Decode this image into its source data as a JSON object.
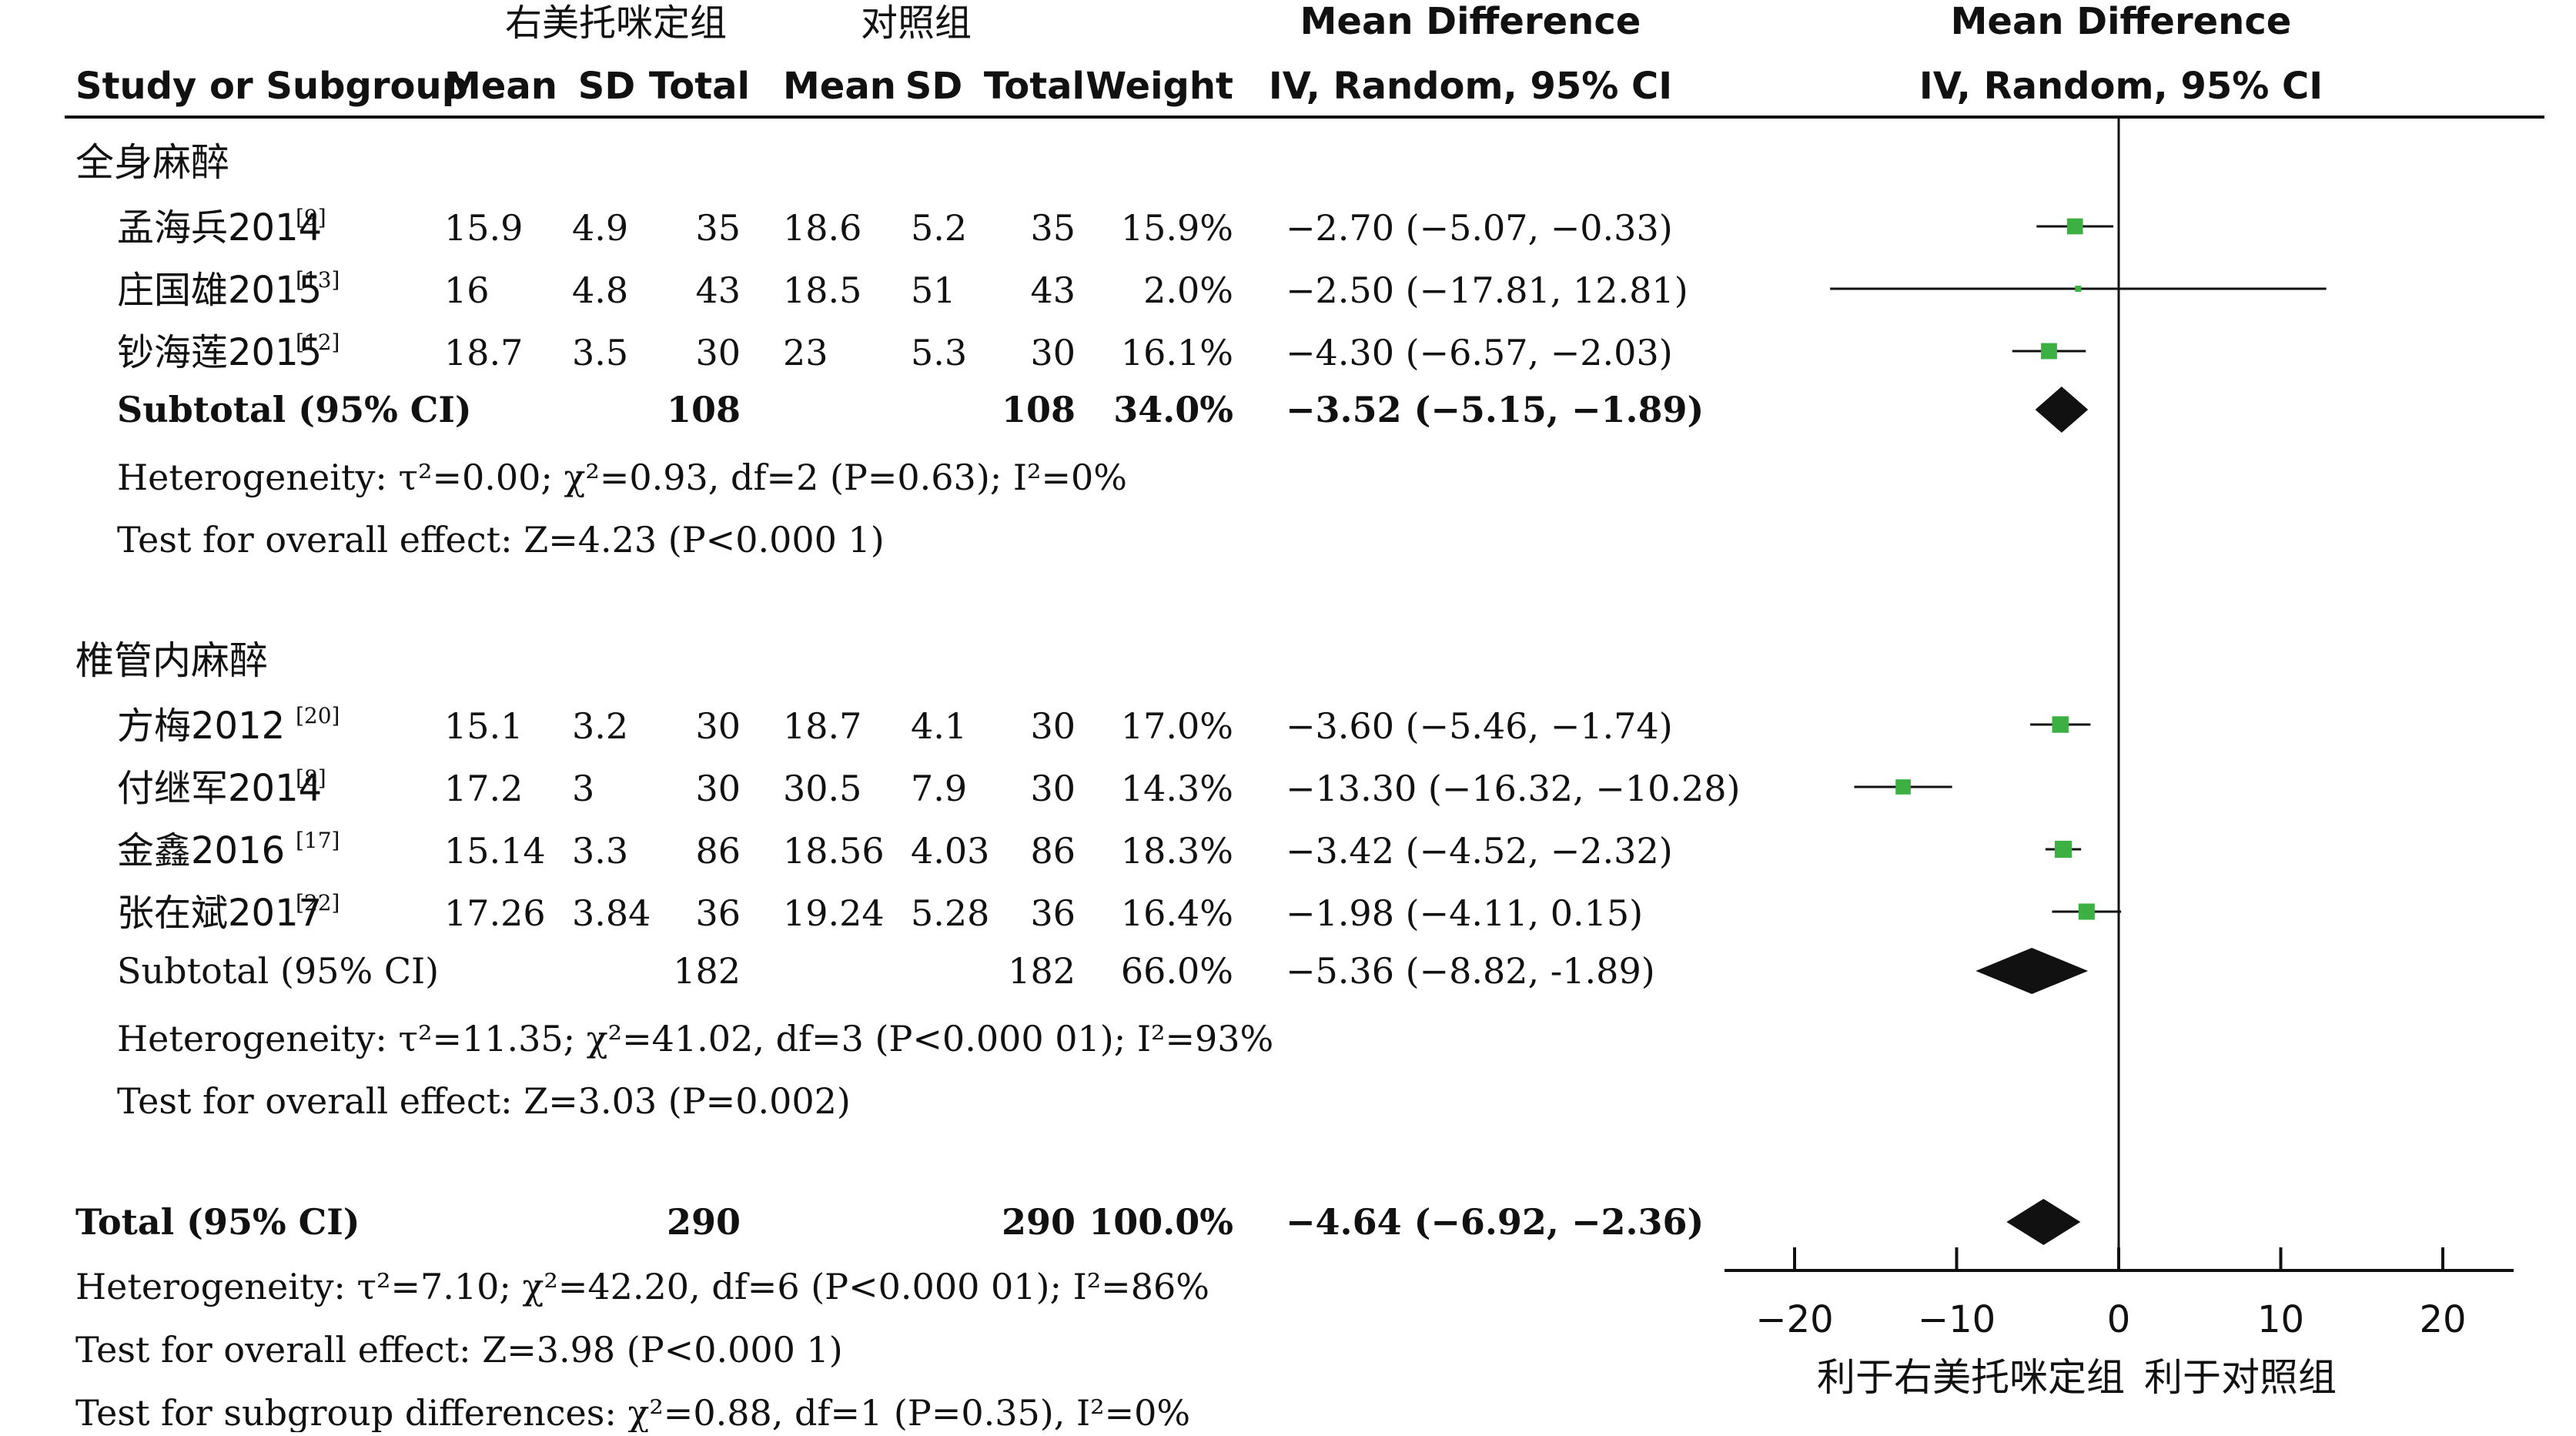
{
  "chart_data": {
    "type": "forest",
    "group_labels": {
      "treatment": "右美托咪定组",
      "control": "对照组"
    },
    "headers": {
      "study": "Study or Subgroup",
      "mean_t": "Mean",
      "sd_t": "SD",
      "total_t": "Total",
      "mean_c": "Mean",
      "sd_c": "SD",
      "total_c": "Total",
      "weight": "Weight",
      "md_line1": "Mean Difference",
      "md_line2": "IV, Random, 95% CI",
      "plot_line1": "Mean Difference",
      "plot_line2": "IV, Random, 95% CI"
    },
    "subgroups": [
      {
        "name": "全身麻醉",
        "studies": [
          {
            "study": "孟海兵2014",
            "ref": "[9]",
            "mean_t": "15.9",
            "sd_t": "4.9",
            "total_t": "35",
            "mean_c": "18.6",
            "sd_c": "5.2",
            "total_c": "35",
            "weight": "15.9%",
            "ci_text": "−2.70 (−5.07, −0.33)",
            "md": -2.7,
            "lo": -5.07,
            "hi": -0.33
          },
          {
            "study": "庄国雄2015",
            "ref": "[13]",
            "mean_t": "16",
            "sd_t": "4.8",
            "total_t": "43",
            "mean_c": "18.5",
            "sd_c": "51",
            "total_c": "43",
            "weight": "2.0%",
            "ci_text": "−2.50 (−17.81, 12.81)",
            "md": -2.5,
            "lo": -17.81,
            "hi": 12.81
          },
          {
            "study": "钞海莲2015",
            "ref": "[12]",
            "mean_t": "18.7",
            "sd_t": "3.5",
            "total_t": "30",
            "mean_c": "23",
            "sd_c": "5.3",
            "total_c": "30",
            "weight": "16.1%",
            "ci_text": "−4.30 (−6.57, −2.03)",
            "md": -4.3,
            "lo": -6.57,
            "hi": -2.03
          }
        ],
        "subtotal": {
          "label": "Subtotal (95% CI)",
          "total_t": "108",
          "total_c": "108",
          "weight": "34.0%",
          "ci_text": "−3.52 (−5.15, −1.89)",
          "md": -3.52,
          "lo": -5.15,
          "hi": -1.89
        },
        "heterogeneity": "Heterogeneity: τ²=0.00; χ²=0.93, df=2 (P=0.63); I²=0%",
        "overall": "Test for overall effect: Z=4.23 (P<0.000 1)"
      },
      {
        "name": "椎管内麻醉",
        "studies": [
          {
            "study": "方梅2012",
            "ref": "[20]",
            "mean_t": "15.1",
            "sd_t": "3.2",
            "total_t": "30",
            "mean_c": "18.7",
            "sd_c": "4.1",
            "total_c": "30",
            "weight": "17.0%",
            "ci_text": "−3.60 (−5.46, −1.74)",
            "md": -3.6,
            "lo": -5.46,
            "hi": -1.74
          },
          {
            "study": "付继军2014",
            "ref": "[8]",
            "mean_t": "17.2",
            "sd_t": "3",
            "total_t": "30",
            "mean_c": "30.5",
            "sd_c": "7.9",
            "total_c": "30",
            "weight": "14.3%",
            "ci_text": "−13.30 (−16.32, −10.28)",
            "md": -13.3,
            "lo": -16.32,
            "hi": -10.28
          },
          {
            "study": "金鑫2016",
            "ref": "[17]",
            "mean_t": "15.14",
            "sd_t": "3.3",
            "total_t": "86",
            "mean_c": "18.56",
            "sd_c": "4.03",
            "total_c": "86",
            "weight": "18.3%",
            "ci_text": "−3.42 (−4.52, −2.32)",
            "md": -3.42,
            "lo": -4.52,
            "hi": -2.32
          },
          {
            "study": "张在斌2017",
            "ref": "[22]",
            "mean_t": "17.26",
            "sd_t": "3.84",
            "total_t": "36",
            "mean_c": "19.24",
            "sd_c": "5.28",
            "total_c": "36",
            "weight": "16.4%",
            "ci_text": "−1.98 (−4.11, 0.15)",
            "md": -1.98,
            "lo": -4.11,
            "hi": 0.15
          }
        ],
        "subtotal": {
          "label": "Subtotal (95% CI)",
          "total_t": "182",
          "total_c": "182",
          "weight": "66.0%",
          "ci_text": "−5.36 (−8.82, -1.89)",
          "md": -5.36,
          "lo": -8.82,
          "hi": -1.89
        },
        "heterogeneity": "Heterogeneity: τ²=11.35; χ²=41.02, df=3 (P<0.000 01); I²=93%",
        "overall": "Test for overall effect: Z=3.03 (P=0.002)"
      }
    ],
    "total": {
      "label": "Total (95% CI)",
      "total_t": "290",
      "total_c": "290",
      "weight": "100.0%",
      "ci_text": "−4.64 (−6.92, −2.36)",
      "md": -4.64,
      "lo": -6.92,
      "hi": -2.36
    },
    "footer": [
      "Heterogeneity: τ²=7.10; χ²=42.20, df=6 (P<0.000 01); I²=86%",
      "Test for overall effect: Z=3.98 (P<0.000 1)",
      "Test for subgroup differences: χ²=0.88, df=1 (P=0.35), I²=0%"
    ],
    "axis": {
      "min": -20,
      "max": 20,
      "ticks": [
        -20,
        -10,
        0,
        10,
        20
      ],
      "tick_labels": [
        "−20",
        "−10",
        "0",
        "10",
        "20"
      ]
    },
    "favours": {
      "left": "利于右美托咪定组",
      "right": "利于对照组"
    },
    "colors": {
      "study_marker": "#3cb043",
      "diamond": "#111111",
      "lines": "#111111"
    }
  }
}
